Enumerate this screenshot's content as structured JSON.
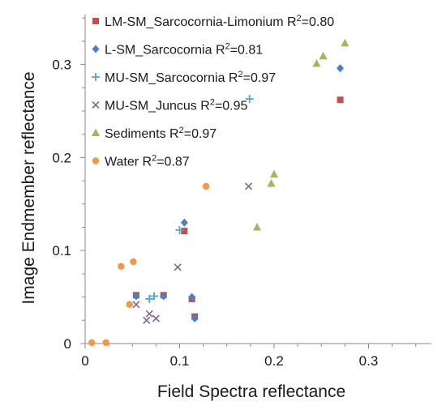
{
  "chart_data": {
    "type": "scatter",
    "xlabel": "Field Spectra reflectance",
    "ylabel": "Image Endmember reflectance",
    "xlim": [
      0,
      0.35
    ],
    "ylim": [
      0,
      0.35
    ],
    "x_ticks": [
      0,
      0.1,
      0.2,
      0.3
    ],
    "x_tick_labels": [
      "0",
      "0.1",
      "0.2",
      "0.3"
    ],
    "y_ticks": [
      0,
      0.1,
      0.2,
      0.3
    ],
    "y_tick_labels": [
      "0",
      "0.1",
      "0.2",
      "0.3"
    ],
    "grid": false,
    "legend_position": "top-left",
    "series": [
      {
        "name": "LM-SM_Sarcocornia-Limonium",
        "r2": "0.80",
        "marker": "square",
        "color": "#c0504d",
        "points": [
          [
            0.054,
            0.052
          ],
          [
            0.083,
            0.052
          ],
          [
            0.105,
            0.121
          ],
          [
            0.113,
            0.048
          ],
          [
            0.116,
            0.029
          ],
          [
            0.27,
            0.262
          ]
        ]
      },
      {
        "name": "L-SM_Sarcocornia",
        "r2": "0.81",
        "marker": "diamond",
        "color": "#4a7fc1",
        "points": [
          [
            0.054,
            0.051
          ],
          [
            0.083,
            0.051
          ],
          [
            0.105,
            0.13
          ],
          [
            0.113,
            0.05
          ],
          [
            0.116,
            0.027
          ],
          [
            0.27,
            0.296
          ]
        ]
      },
      {
        "name": "MU-SM_Sarcocornia",
        "r2": "0.97",
        "marker": "plus",
        "color": "#4bacc6",
        "points": [
          [
            0.068,
            0.048
          ],
          [
            0.073,
            0.051
          ],
          [
            0.1,
            0.122
          ],
          [
            0.174,
            0.263
          ]
        ]
      },
      {
        "name": "MU-SM_Juncus",
        "r2": "0.95",
        "marker": "x",
        "color": "#8064a2",
        "points": [
          [
            0.054,
            0.042
          ],
          [
            0.065,
            0.025
          ],
          [
            0.068,
            0.032
          ],
          [
            0.075,
            0.027
          ],
          [
            0.098,
            0.082
          ],
          [
            0.173,
            0.169
          ]
        ]
      },
      {
        "name": "Sediments",
        "r2": "0.97",
        "marker": "triangle",
        "color": "#9bbb59",
        "points": [
          [
            0.182,
            0.125
          ],
          [
            0.197,
            0.172
          ],
          [
            0.2,
            0.182
          ],
          [
            0.245,
            0.301
          ],
          [
            0.252,
            0.309
          ],
          [
            0.275,
            0.323
          ]
        ]
      },
      {
        "name": "Water",
        "r2": "0.87",
        "marker": "circle",
        "color": "#f79646",
        "points": [
          [
            0.007,
            0.001
          ],
          [
            0.022,
            0.001
          ],
          [
            0.038,
            0.083
          ],
          [
            0.047,
            0.042
          ],
          [
            0.051,
            0.088
          ],
          [
            0.128,
            0.169
          ]
        ]
      }
    ]
  }
}
